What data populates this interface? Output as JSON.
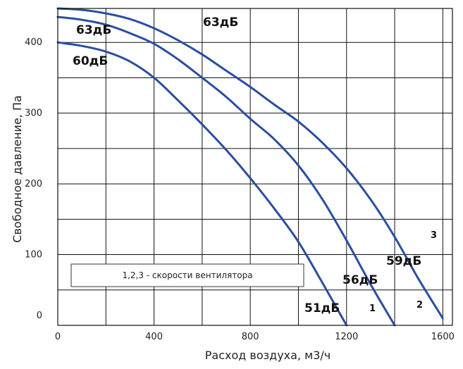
{
  "chart_data": {
    "type": "line",
    "title": "",
    "xlabel": "Расход воздуха, м3/ч",
    "ylabel": "Свободное давление, Па",
    "xlim": [
      0,
      1640
    ],
    "ylim": [
      0,
      448
    ],
    "x_ticks": [
      0,
      400,
      800,
      1200,
      1600
    ],
    "y_ticks": [
      0,
      100,
      200,
      300,
      400
    ],
    "grid": true,
    "line_color": "#2a4ea0",
    "series": [
      {
        "name": "1",
        "points": [
          [
            0,
            400
          ],
          [
            100,
            395
          ],
          [
            200,
            387
          ],
          [
            300,
            373
          ],
          [
            400,
            350
          ],
          [
            500,
            318
          ],
          [
            600,
            284
          ],
          [
            700,
            248
          ],
          [
            800,
            208
          ],
          [
            900,
            165
          ],
          [
            1000,
            118
          ],
          [
            1100,
            60
          ],
          [
            1150,
            30
          ],
          [
            1200,
            0
          ]
        ]
      },
      {
        "name": "2",
        "points": [
          [
            0,
            436
          ],
          [
            100,
            432
          ],
          [
            200,
            425
          ],
          [
            300,
            413
          ],
          [
            400,
            398
          ],
          [
            500,
            376
          ],
          [
            600,
            350
          ],
          [
            700,
            323
          ],
          [
            800,
            292
          ],
          [
            900,
            263
          ],
          [
            1000,
            226
          ],
          [
            1100,
            178
          ],
          [
            1200,
            120
          ],
          [
            1300,
            58
          ],
          [
            1400,
            0
          ]
        ]
      },
      {
        "name": "3",
        "points": [
          [
            0,
            448
          ],
          [
            100,
            446
          ],
          [
            200,
            441
          ],
          [
            300,
            433
          ],
          [
            400,
            420
          ],
          [
            500,
            403
          ],
          [
            600,
            383
          ],
          [
            700,
            360
          ],
          [
            800,
            337
          ],
          [
            900,
            312
          ],
          [
            1000,
            288
          ],
          [
            1100,
            258
          ],
          [
            1200,
            222
          ],
          [
            1300,
            178
          ],
          [
            1400,
            125
          ],
          [
            1500,
            65
          ],
          [
            1600,
            10
          ]
        ]
      }
    ],
    "annotations": [
      "63дБ",
      "63дБ",
      "60дБ",
      "59дБ",
      "56дБ",
      "51дБ",
      "1",
      "2",
      "3"
    ],
    "legend": "1,2,3 - скорости вентилятора"
  }
}
